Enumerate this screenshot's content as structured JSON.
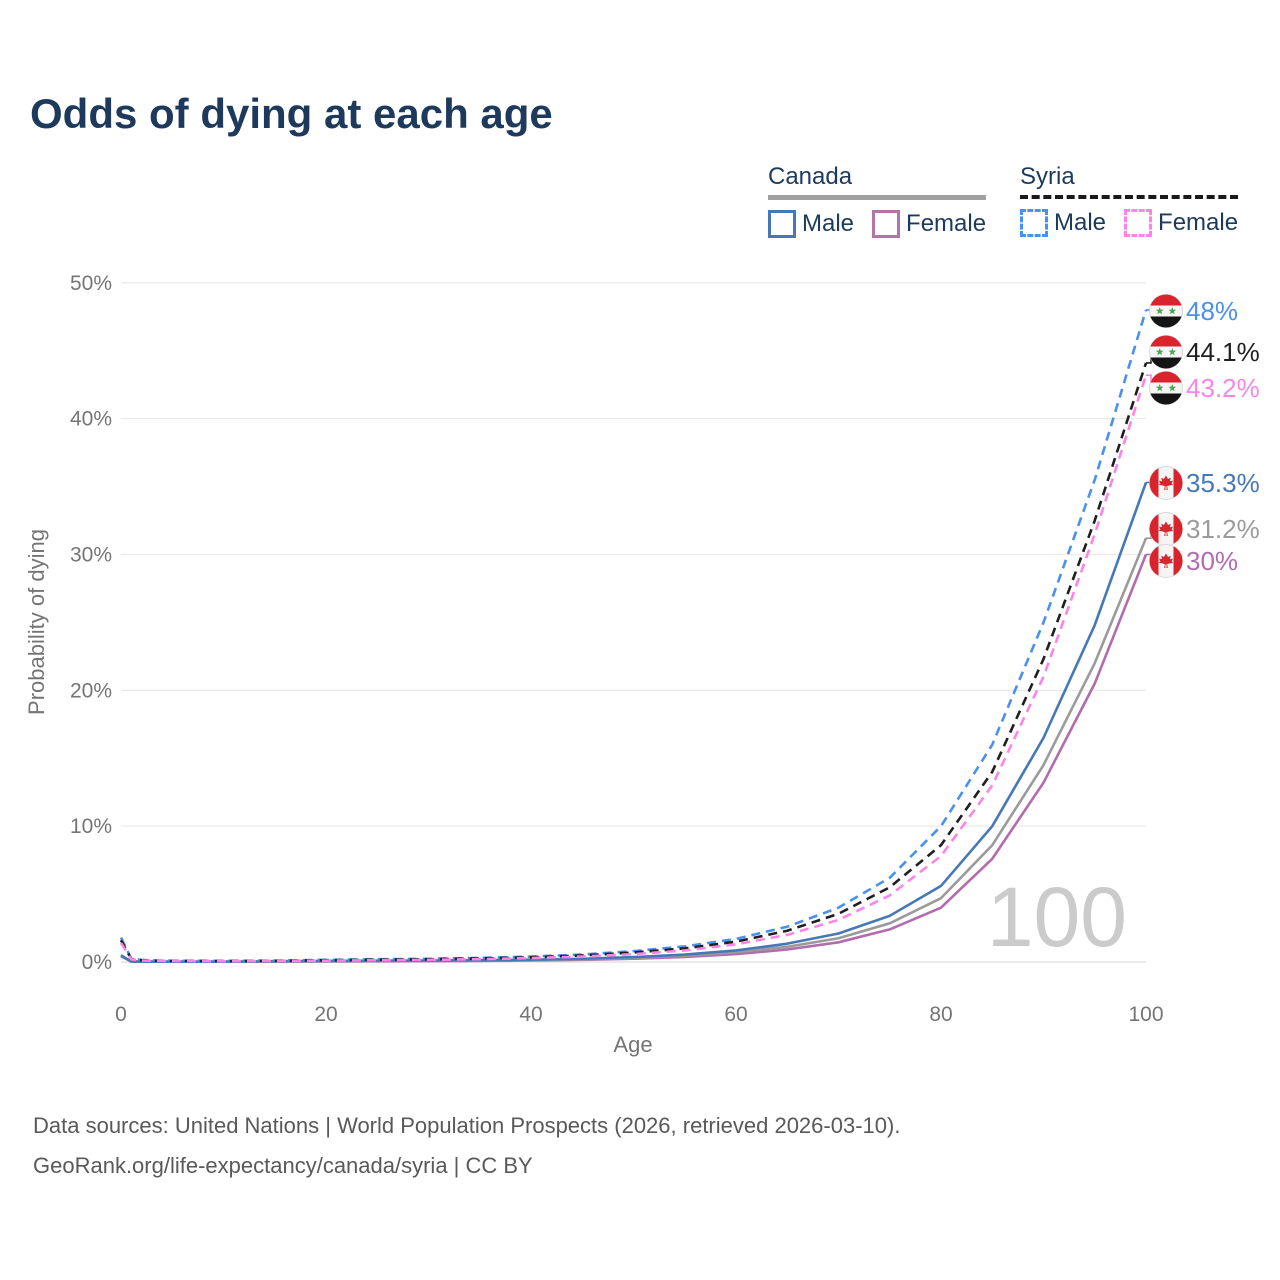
{
  "page": {
    "title": "Odds of dying at each age"
  },
  "legend": {
    "groups": [
      {
        "name": "Canada",
        "line_style": "solid",
        "underline_color": "#a0a0a0",
        "items": [
          {
            "label": "Male",
            "color": "#4678b8"
          },
          {
            "label": "Female",
            "color": "#b573ab"
          }
        ]
      },
      {
        "name": "Syria",
        "line_style": "dashed",
        "underline_color": "#1a1a1a",
        "items": [
          {
            "label": "Male",
            "color": "#4a90ee"
          },
          {
            "label": "Female",
            "color": "#fb85e6"
          }
        ]
      }
    ]
  },
  "chart_data": {
    "type": "line",
    "title": "Odds of dying at each age",
    "xlabel": "Age",
    "ylabel": "Probability of dying",
    "xlim": [
      0,
      100
    ],
    "ylim": [
      0,
      50
    ],
    "x_ticks": [
      0,
      20,
      40,
      60,
      80,
      100
    ],
    "y_tick_labels": [
      "0%",
      "10%",
      "20%",
      "30%",
      "40%",
      "50%"
    ],
    "grid": "horizontal",
    "legend_position": "top-right",
    "hover_age_watermark": "100",
    "x": [
      0,
      1,
      2,
      3,
      4,
      5,
      10,
      15,
      20,
      25,
      30,
      35,
      40,
      45,
      50,
      55,
      60,
      65,
      70,
      75,
      80,
      85,
      90,
      95,
      100
    ],
    "series": [
      {
        "name": "Syria Male",
        "country": "Syria",
        "sex": "Male",
        "color": "#4a90ee",
        "dash": true,
        "flag": "syria",
        "end_label": "48%",
        "values": [
          1.8,
          0.25,
          0.15,
          0.12,
          0.1,
          0.09,
          0.08,
          0.1,
          0.16,
          0.2,
          0.24,
          0.3,
          0.4,
          0.55,
          0.8,
          1.15,
          1.7,
          2.6,
          4.0,
          6.2,
          10.0,
          16.0,
          25.0,
          35.5,
          48.0
        ]
      },
      {
        "name": "Syria Both sexes",
        "country": "Syria",
        "sex": "Both",
        "color": "#1f1f1f",
        "dash": true,
        "flag": "syria",
        "end_label": "44.1%",
        "values": [
          1.6,
          0.22,
          0.13,
          0.1,
          0.09,
          0.08,
          0.07,
          0.09,
          0.13,
          0.17,
          0.2,
          0.26,
          0.35,
          0.48,
          0.7,
          1.0,
          1.5,
          2.3,
          3.55,
          5.5,
          8.6,
          14.0,
          22.3,
          32.5,
          44.1
        ]
      },
      {
        "name": "Syria Female",
        "country": "Syria",
        "sex": "Female",
        "color": "#fb85e6",
        "dash": true,
        "flag": "syria",
        "end_label": "43.2%",
        "values": [
          1.4,
          0.2,
          0.11,
          0.09,
          0.08,
          0.07,
          0.06,
          0.08,
          0.1,
          0.13,
          0.16,
          0.21,
          0.29,
          0.4,
          0.58,
          0.85,
          1.3,
          2.0,
          3.1,
          4.9,
          7.8,
          13.0,
          21.0,
          31.5,
          43.2
        ]
      },
      {
        "name": "Canada Male",
        "country": "Canada",
        "sex": "Male",
        "color": "#4678b8",
        "dash": false,
        "flag": "canada",
        "end_label": "35.3%",
        "values": [
          0.5,
          0.04,
          0.02,
          0.02,
          0.02,
          0.02,
          0.02,
          0.05,
          0.08,
          0.1,
          0.11,
          0.13,
          0.17,
          0.24,
          0.36,
          0.55,
          0.85,
          1.35,
          2.1,
          3.4,
          5.6,
          10.0,
          16.5,
          24.8,
          35.3
        ]
      },
      {
        "name": "Canada Both sexes",
        "country": "Canada",
        "sex": "Both",
        "color": "#9b9b9b",
        "dash": false,
        "flag": "canada",
        "end_label": "31.2%",
        "values": [
          0.46,
          0.04,
          0.02,
          0.02,
          0.02,
          0.02,
          0.02,
          0.04,
          0.06,
          0.08,
          0.09,
          0.11,
          0.14,
          0.2,
          0.3,
          0.46,
          0.72,
          1.12,
          1.75,
          2.85,
          4.7,
          8.6,
          14.5,
          22.0,
          31.2
        ]
      },
      {
        "name": "Canada Female",
        "country": "Canada",
        "sex": "Female",
        "color": "#b26cae",
        "dash": false,
        "flag": "canada",
        "end_label": "30%",
        "values": [
          0.42,
          0.03,
          0.02,
          0.02,
          0.02,
          0.02,
          0.02,
          0.03,
          0.04,
          0.05,
          0.06,
          0.08,
          0.11,
          0.16,
          0.24,
          0.37,
          0.58,
          0.92,
          1.45,
          2.4,
          4.0,
          7.6,
          13.2,
          20.5,
          30.0
        ]
      }
    ],
    "flag_colors": {
      "syria_red": "#d9232e",
      "syria_black": "#141414",
      "syria_green": "#4da553",
      "canada_red": "#d8242c",
      "flag_border": "#d9d9d9",
      "flag_white": "#f5f5f5"
    },
    "style_colors": {
      "grid": "#ebebeb",
      "zero_line": "#dedede",
      "tick_text": "#757575",
      "watermark": "#cbcbcb"
    }
  },
  "footer": {
    "line1": "Data sources: United Nations | World Population Prospects (2026, retrieved 2026-03-10).",
    "line2": "GeoRank.org/life-expectancy/canada/syria | CC BY"
  }
}
